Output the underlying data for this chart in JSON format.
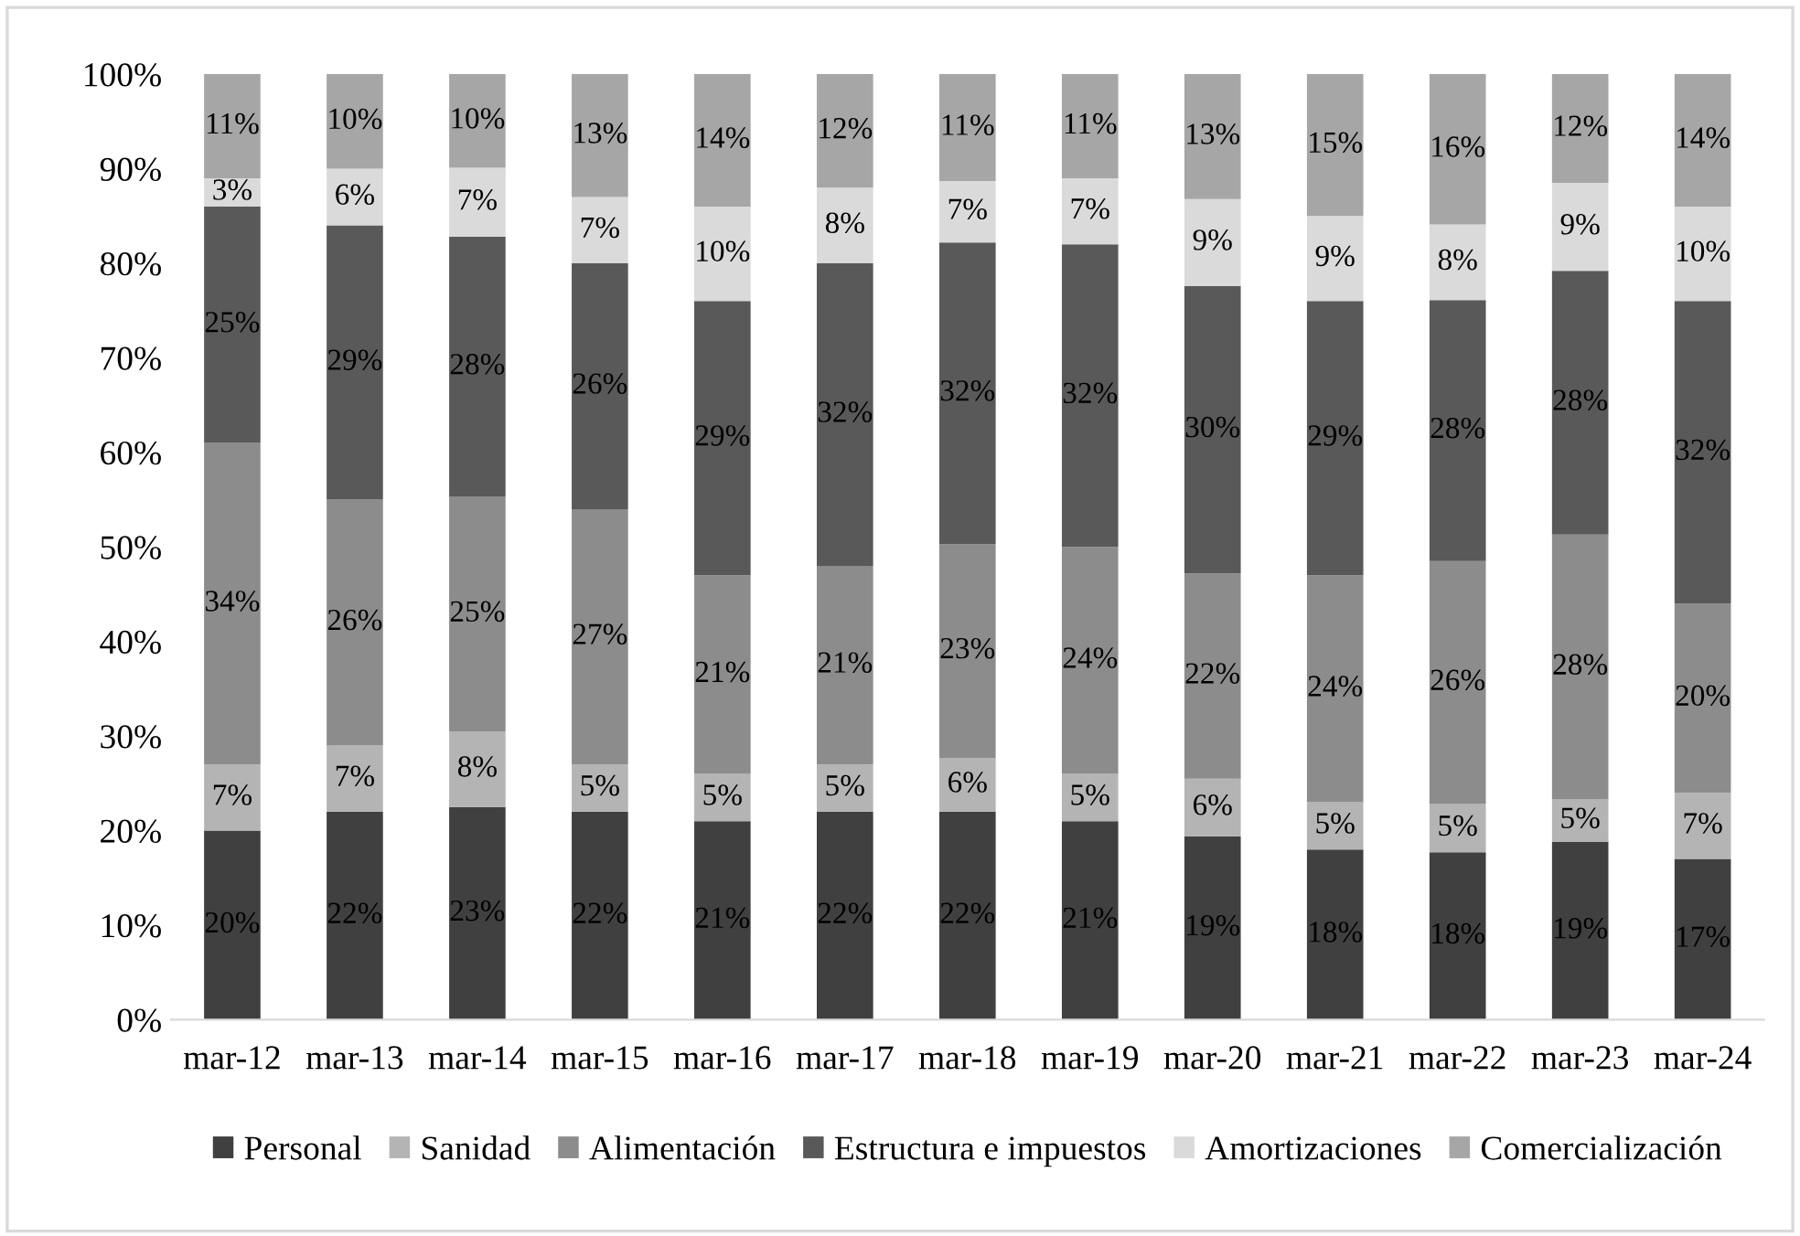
{
  "chart_data": {
    "type": "bar",
    "stacked": true,
    "categories": [
      "mar-12",
      "mar-13",
      "mar-14",
      "mar-15",
      "mar-16",
      "mar-17",
      "mar-18",
      "mar-19",
      "mar-20",
      "mar-21",
      "mar-22",
      "mar-23",
      "mar-24"
    ],
    "series": [
      {
        "name": "Personal",
        "color": "#404040",
        "values": [
          20,
          22,
          22.5,
          22,
          21,
          22,
          22,
          21,
          19.4,
          18,
          17.7,
          18.8,
          17
        ],
        "value_labels": [
          "20%",
          "22%",
          "23%",
          "22%",
          "21%",
          "22%",
          "22%",
          "21%",
          "19%",
          "18%",
          "18%",
          "19%",
          "17%"
        ]
      },
      {
        "name": "Sanidad",
        "color": "#b4b4b4",
        "values": [
          7,
          7,
          8,
          5,
          5,
          5,
          5.7,
          5,
          6.1,
          5,
          5.1,
          4.5,
          7
        ],
        "value_labels": [
          "7%",
          "7%",
          "8%",
          "5%",
          "5%",
          "5%",
          "6%",
          "5%",
          "6%",
          "5%",
          "5%",
          "5%",
          "7%"
        ]
      },
      {
        "name": "Alimentación",
        "color": "#8c8c8c",
        "values": [
          34,
          26,
          24.8,
          27,
          21,
          21,
          22.6,
          24,
          21.7,
          24,
          25.7,
          28,
          20
        ],
        "value_labels": [
          "34%",
          "26%",
          "25%",
          "27%",
          "21%",
          "21%",
          "23%",
          "24%",
          "22%",
          "24%",
          "26%",
          "28%",
          "20%"
        ]
      },
      {
        "name": "Estructura e impuestos",
        "color": "#595959",
        "values": [
          25,
          29,
          27.5,
          26,
          29,
          32,
          31.9,
          32,
          30.4,
          29,
          27.6,
          27.9,
          32
        ],
        "value_labels": [
          "25%",
          "29%",
          "28%",
          "26%",
          "29%",
          "32%",
          "32%",
          "32%",
          "30%",
          "29%",
          "28%",
          "28%",
          "32%"
        ]
      },
      {
        "name": "Amortizaciones",
        "color": "#dadada",
        "values": [
          3,
          6,
          7.3,
          7,
          10,
          8,
          6.5,
          7,
          9.2,
          9,
          8,
          9.3,
          10
        ],
        "value_labels": [
          "3%",
          "6%",
          "7%",
          "7%",
          "10%",
          "8%",
          "7%",
          "7%",
          "9%",
          "9%",
          "8%",
          "9%",
          "10%"
        ]
      },
      {
        "name": "Comercialización",
        "color": "#a6a6a6",
        "values": [
          11,
          10,
          9.9,
          13,
          14,
          12,
          11.3,
          11,
          13.2,
          15,
          15.9,
          11.5,
          14
        ],
        "value_labels": [
          "11%",
          "10%",
          "10%",
          "13%",
          "14%",
          "12%",
          "11%",
          "11%",
          "13%",
          "15%",
          "16%",
          "12%",
          "14%"
        ]
      }
    ],
    "ylim": [
      0,
      100
    ],
    "yticks": [
      {
        "value": 0,
        "label": "0%"
      },
      {
        "value": 10,
        "label": "10%"
      },
      {
        "value": 20,
        "label": "20%"
      },
      {
        "value": 30,
        "label": "30%"
      },
      {
        "value": 40,
        "label": "40%"
      },
      {
        "value": 50,
        "label": "50%"
      },
      {
        "value": 60,
        "label": "60%"
      },
      {
        "value": 70,
        "label": "70%"
      },
      {
        "value": 80,
        "label": "80%"
      },
      {
        "value": 90,
        "label": "90%"
      },
      {
        "value": 100,
        "label": "100%"
      }
    ],
    "grid": false,
    "legend": "bottom"
  }
}
